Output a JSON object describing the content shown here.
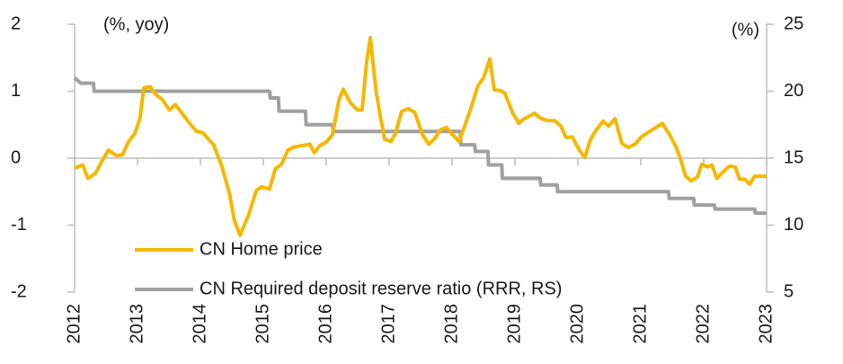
{
  "chart_data": {
    "type": "line",
    "annotations": [
      "(%, yoy)",
      "(%)"
    ],
    "xlim": [
      2012,
      2023
    ],
    "xticks": [
      2012,
      2013,
      2014,
      2015,
      2016,
      2017,
      2018,
      2019,
      2020,
      2021,
      2022,
      2023
    ],
    "ylim": [
      -2,
      2
    ],
    "yticks": [
      2,
      1,
      0,
      -1,
      -2
    ],
    "y2lim": [
      5,
      25
    ],
    "y2ticks": [
      25,
      20,
      15,
      10,
      5
    ],
    "legend": "bottom-left",
    "series": [
      {
        "name": "CN Home price",
        "color": "#f5b800",
        "x": [
          2012.0,
          2012.13,
          2012.21,
          2012.33,
          2012.43,
          2012.54,
          2012.66,
          2012.76,
          2012.86,
          2012.96,
          2013.04,
          2013.1,
          2013.2,
          2013.29,
          2013.39,
          2013.51,
          2013.6,
          2013.7,
          2013.83,
          2013.94,
          2014.04,
          2014.13,
          2014.21,
          2014.34,
          2014.46,
          2014.54,
          2014.63,
          2014.76,
          2014.89,
          2014.97,
          2015.1,
          2015.19,
          2015.29,
          2015.39,
          2015.5,
          2015.64,
          2015.74,
          2015.81,
          2015.9,
          2016.0,
          2016.1,
          2016.2,
          2016.27,
          2016.39,
          2016.5,
          2016.57,
          2016.64,
          2016.7,
          2016.79,
          2016.86,
          2016.93,
          2017.03,
          2017.1,
          2017.2,
          2017.31,
          2017.41,
          2017.53,
          2017.63,
          2017.73,
          2017.81,
          2017.91,
          2018.01,
          2018.11,
          2018.2,
          2018.3,
          2018.41,
          2018.5,
          2018.6,
          2018.67,
          2018.77,
          2018.84,
          2018.96,
          2019.06,
          2019.13,
          2019.23,
          2019.31,
          2019.4,
          2019.53,
          2019.63,
          2019.73,
          2019.81,
          2019.91,
          2020.03,
          2020.11,
          2020.2,
          2020.29,
          2020.4,
          2020.49,
          2020.59,
          2020.7,
          2020.8,
          2020.91,
          2021.01,
          2021.14,
          2021.26,
          2021.34,
          2021.44,
          2021.56,
          2021.63,
          2021.71,
          2021.8,
          2021.9,
          2021.97,
          2022.06,
          2022.13,
          2022.21,
          2022.31,
          2022.41,
          2022.5,
          2022.57,
          2022.66,
          2022.73,
          2022.81,
          2023.0
        ],
        "values": [
          -0.15,
          -0.1,
          -0.3,
          -0.23,
          -0.05,
          0.12,
          0.04,
          0.05,
          0.25,
          0.37,
          0.6,
          1.05,
          1.07,
          0.95,
          0.88,
          0.72,
          0.8,
          0.68,
          0.52,
          0.4,
          0.38,
          0.28,
          0.2,
          -0.12,
          -0.52,
          -0.93,
          -1.15,
          -0.86,
          -0.48,
          -0.43,
          -0.46,
          -0.16,
          -0.09,
          0.12,
          0.17,
          0.19,
          0.21,
          0.08,
          0.19,
          0.24,
          0.35,
          0.86,
          1.03,
          0.82,
          0.72,
          0.72,
          1.42,
          1.8,
          1.02,
          0.62,
          0.28,
          0.25,
          0.37,
          0.7,
          0.74,
          0.68,
          0.35,
          0.21,
          0.3,
          0.42,
          0.46,
          0.35,
          0.25,
          0.48,
          0.75,
          1.08,
          1.2,
          1.48,
          1.02,
          1.01,
          0.97,
          0.68,
          0.52,
          0.58,
          0.63,
          0.67,
          0.6,
          0.56,
          0.56,
          0.48,
          0.31,
          0.32,
          0.11,
          0.01,
          0.28,
          0.42,
          0.55,
          0.48,
          0.59,
          0.22,
          0.16,
          0.21,
          0.32,
          0.4,
          0.47,
          0.52,
          0.38,
          0.17,
          -0.01,
          -0.26,
          -0.34,
          -0.28,
          -0.09,
          -0.13,
          -0.1,
          -0.3,
          -0.2,
          -0.12,
          -0.13,
          -0.31,
          -0.32,
          -0.39,
          -0.27,
          -0.27
        ]
      },
      {
        "name": "CN Required deposit reserve ratio (RRR, RS)",
        "color": "#a0a0a0",
        "axis": "y2",
        "x": [
          2012.0,
          2012.1,
          2012.3,
          2012.31,
          2015.1,
          2015.11,
          2015.24,
          2015.25,
          2015.67,
          2015.68,
          2016.1,
          2016.11,
          2018.13,
          2018.14,
          2018.36,
          2018.37,
          2018.57,
          2018.58,
          2018.79,
          2018.8,
          2019.4,
          2019.41,
          2019.67,
          2019.68,
          2021.44,
          2021.45,
          2021.84,
          2021.85,
          2022.17,
          2022.18,
          2022.81,
          2022.82,
          2023.0
        ],
        "values": [
          21.0,
          20.6,
          20.6,
          20.0,
          20.0,
          19.5,
          19.5,
          18.5,
          18.5,
          17.5,
          17.5,
          17.0,
          17.0,
          16.0,
          16.0,
          15.5,
          15.5,
          14.5,
          14.5,
          13.5,
          13.5,
          13.0,
          13.0,
          12.5,
          12.5,
          12.0,
          12.0,
          11.5,
          11.5,
          11.2,
          11.2,
          10.9,
          10.9
        ]
      }
    ]
  }
}
